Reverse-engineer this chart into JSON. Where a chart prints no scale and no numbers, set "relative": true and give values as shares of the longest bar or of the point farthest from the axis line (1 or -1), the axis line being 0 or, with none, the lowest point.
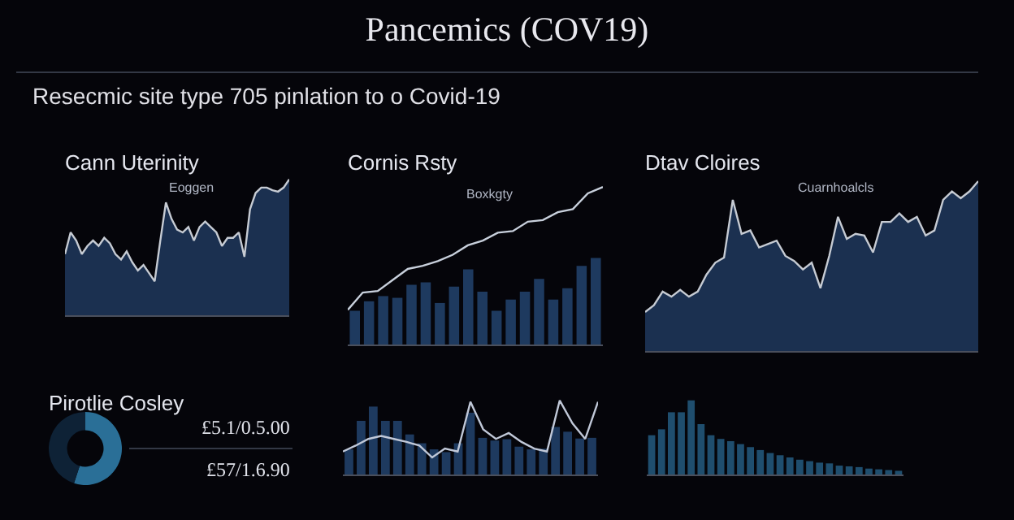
{
  "chart_data": [
    {
      "type": "other",
      "title": "Pancemics (COV19)",
      "subtitle": "Resecmic site type 705 pinlation to o Covid-19"
    },
    {
      "type": "area",
      "title": "Cann Uterinity",
      "relative": true,
      "annotations": [
        "Eoggen"
      ],
      "categories": [
        null,
        null,
        null,
        null,
        null,
        null,
        null,
        null,
        null,
        null,
        null,
        null,
        null,
        null,
        null,
        null,
        null,
        null,
        null,
        null,
        null,
        null,
        null,
        null,
        null,
        null,
        null,
        null,
        null,
        null,
        null,
        null,
        null,
        null,
        null,
        null,
        null,
        null,
        null,
        null,
        null
      ],
      "series": [
        {
          "color": "#1b3050",
          "values": [
            0.45,
            0.61,
            0.55,
            0.45,
            0.51,
            0.55,
            0.51,
            0.57,
            0.53,
            0.45,
            0.41,
            0.47,
            0.39,
            0.33,
            0.37,
            0.31,
            0.25,
            0.55,
            0.83,
            0.71,
            0.63,
            0.61,
            0.65,
            0.55,
            0.65,
            0.69,
            0.65,
            0.61,
            0.51,
            0.57,
            0.57,
            0.61,
            0.43,
            0.78,
            0.9,
            0.94,
            0.94,
            0.92,
            0.91,
            0.94,
            1
          ]
        }
      ]
    },
    {
      "type": "bar",
      "relative": true,
      "categories": [
        null,
        null,
        null,
        null,
        null,
        null,
        null,
        null,
        null,
        null,
        null,
        null,
        null,
        null,
        null,
        null,
        null,
        null
      ],
      "values": [
        0.39,
        0.5,
        0.56,
        0.54,
        0.69,
        0.72,
        0.48,
        0.67,
        0.87,
        0.61,
        0.39,
        0.52,
        0.61,
        0.76,
        0.52,
        0.65,
        0.91,
        1
      ],
      "color": "#1e3a5f"
    },
    {
      "type": "line",
      "title": "Cornis Rsty",
      "relative": true,
      "annotations": [
        "Boxkgty"
      ],
      "categories": [
        null,
        null,
        null,
        null,
        null,
        null,
        null,
        null,
        null,
        null,
        null,
        null,
        null,
        null,
        null,
        null,
        null,
        null
      ],
      "values": [
        0.22,
        0.33,
        0.34,
        0.41,
        0.48,
        0.5,
        0.53,
        0.57,
        0.63,
        0.66,
        0.71,
        0.72,
        0.78,
        0.79,
        0.84,
        0.86,
        0.96,
        1
      ],
      "color": "#c8d0dc"
    },
    {
      "type": "area",
      "title": "Dtav Cloires",
      "relative": true,
      "annotations": [
        "Cuarnhoalcls"
      ],
      "categories": [
        null,
        null,
        null,
        null,
        null,
        null,
        null,
        null,
        null,
        null,
        null,
        null,
        null,
        null,
        null,
        null,
        null,
        null,
        null,
        null,
        null,
        null,
        null,
        null,
        null,
        null,
        null,
        null,
        null,
        null,
        null,
        null,
        null,
        null,
        null,
        null,
        null,
        null,
        null
      ],
      "series": [
        {
          "color": "#1b3050",
          "values": [
            0.23,
            0.27,
            0.35,
            0.32,
            0.36,
            0.32,
            0.35,
            0.45,
            0.52,
            0.55,
            0.89,
            0.69,
            0.71,
            0.61,
            0.63,
            0.65,
            0.56,
            0.53,
            0.48,
            0.52,
            0.37,
            0.56,
            0.79,
            0.66,
            0.69,
            0.68,
            0.58,
            0.76,
            0.76,
            0.81,
            0.76,
            0.79,
            0.68,
            0.71,
            0.89,
            0.94,
            0.9,
            0.94,
            1
          ]
        }
      ]
    },
    {
      "type": "donut",
      "title": "Pirotlie Cosley",
      "annotations": [
        "£5.1/0.5.00",
        "£57/1.6.90"
      ],
      "categories": [
        null,
        null
      ],
      "values": [
        55,
        45
      ],
      "colors": [
        "#2a6f97",
        "#0e2236"
      ]
    },
    {
      "type": "bar",
      "relative": true,
      "categories": [
        null,
        null,
        null,
        null,
        null,
        null,
        null,
        null,
        null,
        null,
        null,
        null,
        null,
        null,
        null,
        null,
        null,
        null,
        null,
        null,
        null
      ],
      "values": [
        0.37,
        0.79,
        1,
        0.79,
        0.79,
        0.59,
        0.46,
        0.37,
        0.33,
        0.46,
        0.91,
        0.54,
        0.5,
        0.52,
        0.41,
        0.37,
        0.38,
        0.7,
        0.63,
        0.53,
        0.54
      ],
      "color": "#1e3a5f"
    },
    {
      "type": "line",
      "relative": true,
      "categories": [
        null,
        null,
        null,
        null,
        null,
        null,
        null,
        null,
        null,
        null,
        null,
        null,
        null,
        null,
        null,
        null,
        null,
        null,
        null,
        null,
        null
      ],
      "values": [
        0.31,
        0.39,
        0.48,
        0.52,
        0.48,
        0.44,
        0.39,
        0.23,
        0.35,
        0.31,
        0.98,
        0.61,
        0.48,
        0.56,
        0.44,
        0.35,
        0.31,
        1,
        0.69,
        0.48,
        0.98
      ],
      "color": "#c0c8d8"
    },
    {
      "type": "bar",
      "relative": true,
      "categories": [
        null,
        null,
        null,
        null,
        null,
        null,
        null,
        null,
        null,
        null,
        null,
        null,
        null,
        null,
        null,
        null,
        null,
        null,
        null,
        null,
        null,
        null,
        null,
        null,
        null,
        null
      ],
      "values": [
        0.53,
        0.61,
        0.84,
        0.84,
        1,
        0.68,
        0.53,
        0.48,
        0.45,
        0.41,
        0.37,
        0.33,
        0.29,
        0.26,
        0.23,
        0.2,
        0.18,
        0.16,
        0.15,
        0.12,
        0.11,
        0.1,
        0.08,
        0.07,
        0.06,
        0.05
      ],
      "color": "#1f4e6e"
    }
  ]
}
